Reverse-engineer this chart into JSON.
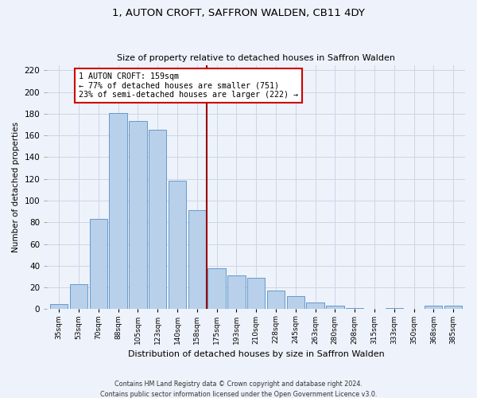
{
  "title": "1, AUTON CROFT, SAFFRON WALDEN, CB11 4DY",
  "subtitle": "Size of property relative to detached houses in Saffron Walden",
  "xlabel": "Distribution of detached houses by size in Saffron Walden",
  "ylabel": "Number of detached properties",
  "bar_labels": [
    "35sqm",
    "53sqm",
    "70sqm",
    "88sqm",
    "105sqm",
    "123sqm",
    "140sqm",
    "158sqm",
    "175sqm",
    "193sqm",
    "210sqm",
    "228sqm",
    "245sqm",
    "263sqm",
    "280sqm",
    "298sqm",
    "315sqm",
    "333sqm",
    "350sqm",
    "368sqm",
    "385sqm"
  ],
  "bar_values": [
    5,
    23,
    83,
    181,
    173,
    165,
    118,
    91,
    38,
    31,
    29,
    17,
    12,
    6,
    3,
    1,
    0,
    1,
    0,
    3,
    3
  ],
  "bar_color": "#b8d0ea",
  "bar_edge_color": "#6699cc",
  "vline_index": 7,
  "vline_color": "#990000",
  "annotation_title": "1 AUTON CROFT: 159sqm",
  "annotation_line1": "← 77% of detached houses are smaller (751)",
  "annotation_line2": "23% of semi-detached houses are larger (222) →",
  "annotation_box_color": "#ffffff",
  "annotation_box_edge_color": "#cc0000",
  "ylim": [
    0,
    225
  ],
  "yticks": [
    0,
    20,
    40,
    60,
    80,
    100,
    120,
    140,
    160,
    180,
    200,
    220
  ],
  "footer_line1": "Contains HM Land Registry data © Crown copyright and database right 2024.",
  "footer_line2": "Contains public sector information licensed under the Open Government Licence v3.0.",
  "bg_color": "#eef2fa",
  "grid_color": "#ccd6e8"
}
